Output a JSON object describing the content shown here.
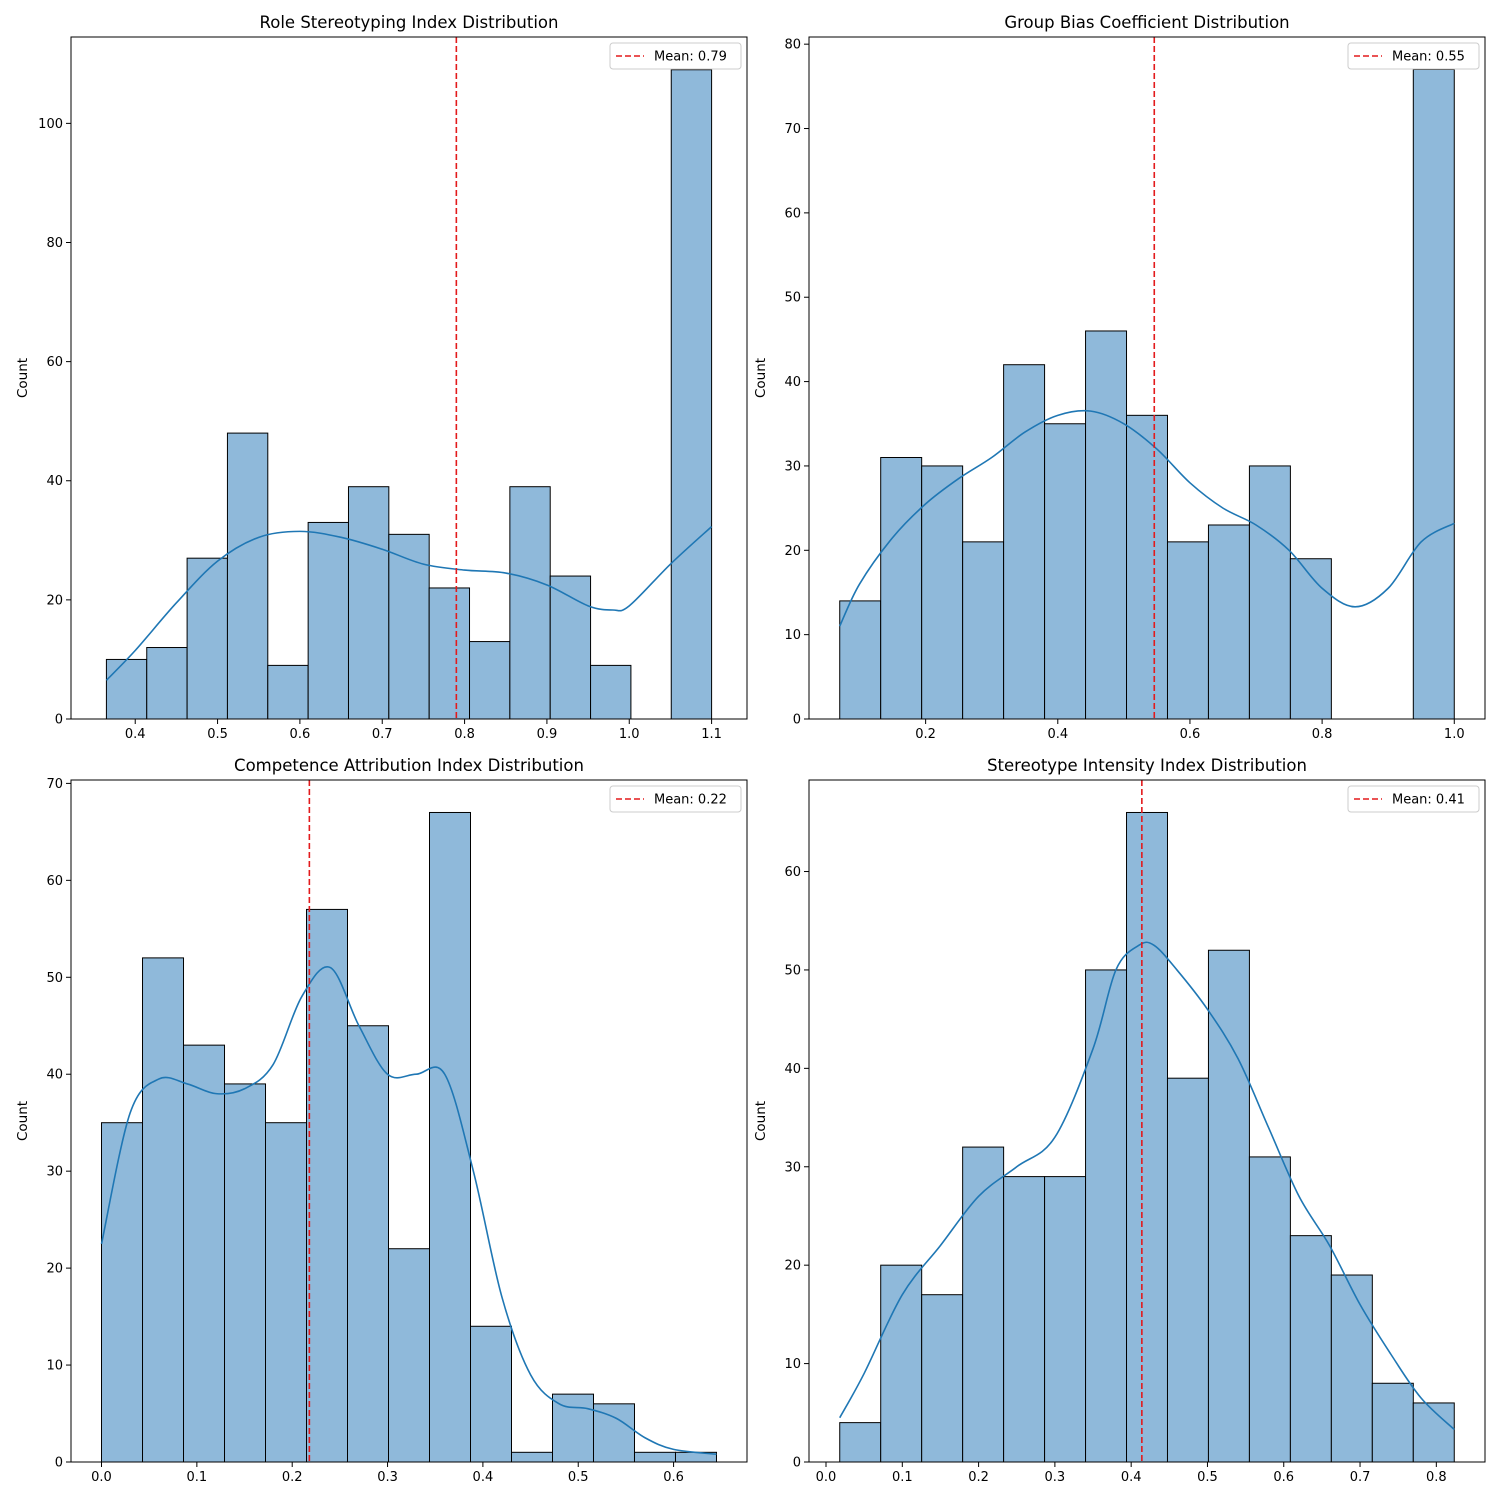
{
  "chart_data": [
    {
      "type": "histogram",
      "title": "Role Stereotyping Index Distribution",
      "xlabel": "",
      "ylabel": "Count",
      "bin_edges": [
        0.365,
        0.414,
        0.463,
        0.512,
        0.561,
        0.61,
        0.659,
        0.708,
        0.757,
        0.806,
        0.855,
        0.904,
        0.953,
        1.002,
        1.051,
        1.1
      ],
      "counts": [
        10,
        12,
        27,
        48,
        9,
        33,
        39,
        31,
        22,
        13,
        39,
        24,
        9,
        0,
        109
      ],
      "kde": {
        "x": [
          0.365,
          0.4,
          0.45,
          0.5,
          0.55,
          0.6,
          0.65,
          0.7,
          0.75,
          0.8,
          0.85,
          0.9,
          0.95,
          0.98,
          1.0,
          1.05,
          1.1
        ],
        "y": [
          6.5,
          11.5,
          19.5,
          26.5,
          30.5,
          31.5,
          30.5,
          28.5,
          26,
          25,
          24.5,
          22.5,
          19,
          18.3,
          19,
          26,
          32.3
        ]
      },
      "mean": 0.79,
      "mean_label": "Mean: 0.79",
      "xlim": [
        0.322,
        1.143
      ],
      "ylim": [
        0,
        114.5
      ],
      "xticks": [
        0.4,
        0.5,
        0.6,
        0.7,
        0.8,
        0.9,
        1.0,
        1.1
      ],
      "xtick_labels": [
        "0.4",
        "0.5",
        "0.6",
        "0.7",
        "0.8",
        "0.9",
        "1.0",
        "1.1"
      ],
      "yticks": [
        0,
        20,
        40,
        60,
        80,
        100
      ],
      "ytick_labels": [
        "0",
        "20",
        "40",
        "60",
        "80",
        "100"
      ],
      "legend_position": "top-right"
    },
    {
      "type": "histogram",
      "title": "Group Bias Coefficient Distribution",
      "xlabel": "",
      "ylabel": "Count",
      "bin_edges": [
        0.07,
        0.132,
        0.194,
        0.256,
        0.318,
        0.38,
        0.442,
        0.504,
        0.566,
        0.628,
        0.69,
        0.752,
        0.814,
        0.876,
        0.938,
        1.0
      ],
      "counts": [
        14,
        31,
        30,
        21,
        42,
        35,
        46,
        36,
        21,
        23,
        30,
        19,
        0,
        0,
        77
      ],
      "kde": {
        "x": [
          0.07,
          0.1,
          0.15,
          0.2,
          0.25,
          0.3,
          0.35,
          0.4,
          0.45,
          0.5,
          0.55,
          0.6,
          0.65,
          0.7,
          0.75,
          0.8,
          0.85,
          0.9,
          0.95,
          1.0
        ],
        "y": [
          11,
          16,
          21.5,
          25.5,
          28.5,
          31,
          34,
          36,
          36.5,
          35,
          32,
          28,
          25,
          23,
          20,
          15.5,
          13.3,
          15.5,
          21,
          23.2
        ]
      },
      "mean": 0.546,
      "mean_label": "Mean: 0.55",
      "xlim": [
        0.0235,
        1.0465
      ],
      "ylim": [
        0,
        80.85
      ],
      "xticks": [
        0.2,
        0.4,
        0.6,
        0.8,
        1.0
      ],
      "xtick_labels": [
        "0.2",
        "0.4",
        "0.6",
        "0.8",
        "1.0"
      ],
      "yticks": [
        0,
        10,
        20,
        30,
        40,
        50,
        60,
        70,
        80
      ],
      "ytick_labels": [
        "0",
        "10",
        "20",
        "30",
        "40",
        "50",
        "60",
        "70",
        "80"
      ],
      "legend_position": "top-right"
    },
    {
      "type": "histogram",
      "title": "Competence Attribution Index Distribution",
      "xlabel": "",
      "ylabel": "Count",
      "bin_edges": [
        0.0,
        0.043,
        0.086,
        0.129,
        0.172,
        0.215,
        0.258,
        0.301,
        0.344,
        0.387,
        0.43,
        0.473,
        0.516,
        0.559,
        0.602,
        0.645
      ],
      "counts": [
        35,
        52,
        43,
        39,
        35,
        57,
        45,
        22,
        67,
        14,
        1,
        7,
        6,
        1,
        1
      ],
      "kde": {
        "x": [
          0.0,
          0.03,
          0.06,
          0.09,
          0.12,
          0.15,
          0.18,
          0.21,
          0.24,
          0.27,
          0.3,
          0.33,
          0.36,
          0.39,
          0.42,
          0.45,
          0.48,
          0.51,
          0.54,
          0.57,
          0.6,
          0.645
        ],
        "y": [
          22.5,
          36,
          39.5,
          39,
          38,
          38.5,
          41,
          48,
          51,
          45,
          40,
          40,
          40,
          30,
          17,
          9,
          6,
          5.5,
          4.5,
          2.5,
          1.3,
          0.8
        ]
      },
      "mean": 0.218,
      "mean_label": "Mean: 0.22",
      "xlim": [
        -0.032,
        0.677
      ],
      "ylim": [
        0,
        70.35
      ],
      "xticks": [
        0.0,
        0.1,
        0.2,
        0.3,
        0.4,
        0.5,
        0.6
      ],
      "xtick_labels": [
        "0.0",
        "0.1",
        "0.2",
        "0.3",
        "0.4",
        "0.5",
        "0.6"
      ],
      "yticks": [
        0,
        10,
        20,
        30,
        40,
        50,
        60,
        70
      ],
      "ytick_labels": [
        "0",
        "10",
        "20",
        "30",
        "40",
        "50",
        "60",
        "70"
      ],
      "legend_position": "top-right"
    },
    {
      "type": "histogram",
      "title": "Stereotype Intensity Index Distribution",
      "xlabel": "",
      "ylabel": "Count",
      "bin_edges": [
        0.018,
        0.0717,
        0.1254,
        0.1791,
        0.2328,
        0.2865,
        0.3402,
        0.3939,
        0.4476,
        0.5013,
        0.555,
        0.6087,
        0.6624,
        0.7161,
        0.7698,
        0.8235
      ],
      "counts": [
        4,
        20,
        17,
        32,
        29,
        29,
        50,
        66,
        39,
        52,
        31,
        23,
        19,
        8,
        6
      ],
      "kde": {
        "x": [
          0.018,
          0.05,
          0.1,
          0.15,
          0.2,
          0.25,
          0.3,
          0.35,
          0.38,
          0.41,
          0.43,
          0.46,
          0.5,
          0.54,
          0.58,
          0.62,
          0.66,
          0.7,
          0.74,
          0.78,
          0.8235
        ],
        "y": [
          4.5,
          9,
          17,
          22,
          27,
          30,
          33,
          42,
          50,
          52.5,
          52.5,
          50,
          46,
          41,
          34,
          27,
          22,
          16,
          11,
          6.5,
          3.3
        ]
      },
      "mean": 0.414,
      "mean_label": "Mean: 0.41",
      "xlim": [
        -0.0223,
        0.8638
      ],
      "ylim": [
        0,
        69.3
      ],
      "xticks": [
        0.0,
        0.1,
        0.2,
        0.3,
        0.4,
        0.5,
        0.6,
        0.7,
        0.8
      ],
      "xtick_labels": [
        "0.0",
        "0.1",
        "0.2",
        "0.3",
        "0.4",
        "0.5",
        "0.6",
        "0.7",
        "0.8"
      ],
      "yticks": [
        0,
        10,
        20,
        30,
        40,
        50,
        60
      ],
      "ytick_labels": [
        "0",
        "10",
        "20",
        "30",
        "40",
        "50",
        "60"
      ],
      "legend_position": "top-right"
    }
  ],
  "colors": {
    "bar_fill": "#8fb9da",
    "bar_edge": "#000000",
    "kde_line": "#1f77b4",
    "mean_line": "#e31a1c",
    "axis": "#000000"
  }
}
